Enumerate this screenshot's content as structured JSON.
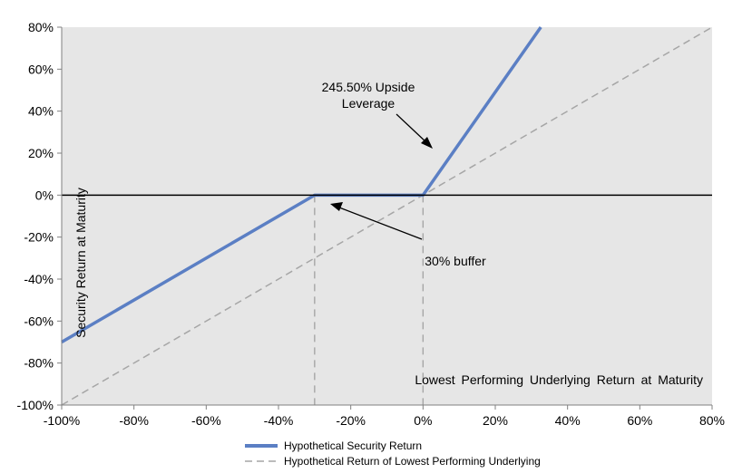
{
  "chart_data": {
    "type": "line",
    "xlabel": "Lowest Performing Underlying Return at Maturity",
    "ylabel": "Security Return at Maturity",
    "xlim": [
      -100,
      80
    ],
    "ylim": [
      -100,
      80
    ],
    "x_ticks": [
      "-100%",
      "-80%",
      "-60%",
      "-40%",
      "-20%",
      "0%",
      "20%",
      "40%",
      "60%",
      "80%"
    ],
    "y_ticks": [
      "80%",
      "60%",
      "40%",
      "20%",
      "0%",
      "-20%",
      "-40%",
      "-60%",
      "-80%",
      "-100%"
    ],
    "series": [
      {
        "name": "Hypothetical Security Return",
        "color": "#5b7fc4",
        "style": "solid",
        "x": [
          -100,
          -30,
          0,
          32.6
        ],
        "y": [
          -70,
          0,
          0,
          80
        ]
      },
      {
        "name": "Hypothetical Return of Lowest Performing Underlying",
        "color": "#a6a6a6",
        "style": "dashed",
        "x": [
          -100,
          80
        ],
        "y": [
          -100,
          80
        ]
      }
    ],
    "guides_x": [
      -30,
      0
    ],
    "annotations": [
      {
        "lines": [
          "245.50% Upside",
          "Leverage"
        ]
      },
      {
        "lines": [
          "30% buffer"
        ]
      }
    ],
    "grid": false,
    "background": "#e6e6e6",
    "legend": "bottom"
  }
}
